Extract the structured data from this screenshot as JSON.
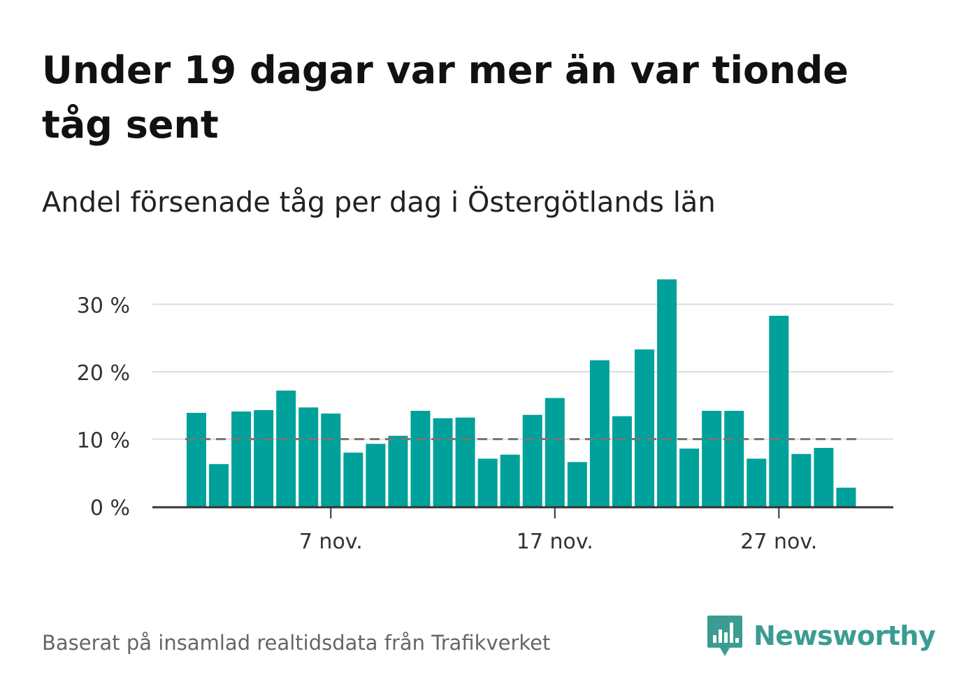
{
  "title": "Under 19 dagar var mer än var tionde tåg sent",
  "subtitle": "Andel försenade tåg per dag i Östergötlands län",
  "source": "Baserat på insamlad realtidsdata från Trafikverket",
  "brand": {
    "name": "Newsworthy",
    "logo_icon": "newsworthy-bar-chart-icon",
    "color": "#3a9c92"
  },
  "chart_data": {
    "type": "bar",
    "x_start_day": 1,
    "x_month_label": "nov.",
    "x": [
      "1 nov.",
      "2 nov.",
      "3 nov.",
      "4 nov.",
      "5 nov.",
      "6 nov.",
      "7 nov.",
      "8 nov.",
      "9 nov.",
      "10 nov.",
      "11 nov.",
      "12 nov.",
      "13 nov.",
      "14 nov.",
      "15 nov.",
      "16 nov.",
      "17 nov.",
      "18 nov.",
      "19 nov.",
      "20 nov.",
      "21 nov.",
      "22 nov.",
      "23 nov.",
      "24 nov.",
      "25 nov.",
      "26 nov.",
      "27 nov.",
      "28 nov.",
      "29 nov.",
      "30 nov."
    ],
    "values": [
      13.9,
      6.3,
      14.1,
      14.3,
      17.2,
      14.7,
      13.8,
      8.0,
      9.3,
      10.5,
      14.2,
      13.1,
      13.2,
      7.1,
      7.7,
      13.6,
      16.1,
      6.6,
      21.7,
      13.4,
      23.3,
      33.7,
      8.6,
      14.2,
      14.2,
      7.1,
      28.3,
      7.8,
      8.7,
      2.8
    ],
    "reference_line": 10,
    "ylim": [
      0,
      35
    ],
    "y_ticks": [
      0,
      10,
      20,
      30
    ],
    "y_tick_labels": [
      "0 %",
      "10 %",
      "20 %",
      "30 %"
    ],
    "x_ticks": [
      "7 nov.",
      "17 nov.",
      "27 nov."
    ],
    "xlabel": "",
    "ylabel": "",
    "grid": true,
    "bar_color": "#00a19a",
    "reference_line_color": "#777777",
    "grid_color": "#dddddd",
    "axis_color": "#333333"
  }
}
